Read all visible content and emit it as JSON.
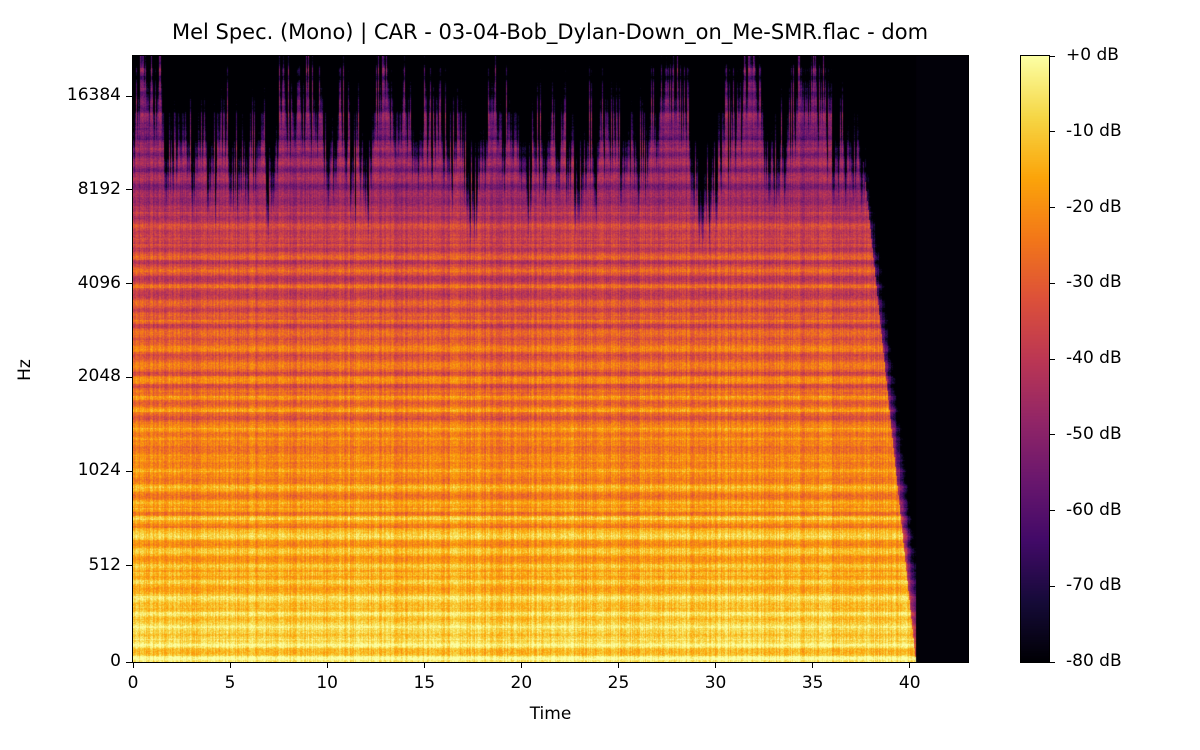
{
  "chart_data": {
    "type": "heatmap",
    "title": "Mel Spec. (Mono) | CAR - 03-04-Bob_Dylan-Down_on_Me-SMR.flac - dom",
    "xlabel": "Time",
    "ylabel": "Hz",
    "xlim": [
      0,
      43
    ],
    "ylim": [
      0,
      22050
    ],
    "yscale": "symlog (base 2, linear below 1000 Hz)",
    "x_ticks": [
      0,
      5,
      10,
      15,
      20,
      25,
      30,
      35,
      40
    ],
    "y_ticks": [
      0,
      512,
      1024,
      2048,
      4096,
      8192,
      16384
    ],
    "colormap": "inferno",
    "colorbar": {
      "range": [
        -80,
        0
      ],
      "ticks": [
        "+0 dB",
        "-10 dB",
        "-20 dB",
        "-30 dB",
        "-40 dB",
        "-50 dB",
        "-60 dB",
        "-70 dB",
        "-80 dB"
      ],
      "tick_values": [
        0,
        -10,
        -20,
        -30,
        -40,
        -50,
        -60,
        -70,
        -80
      ]
    },
    "audio_end_time": 40.3,
    "grid": false
  }
}
